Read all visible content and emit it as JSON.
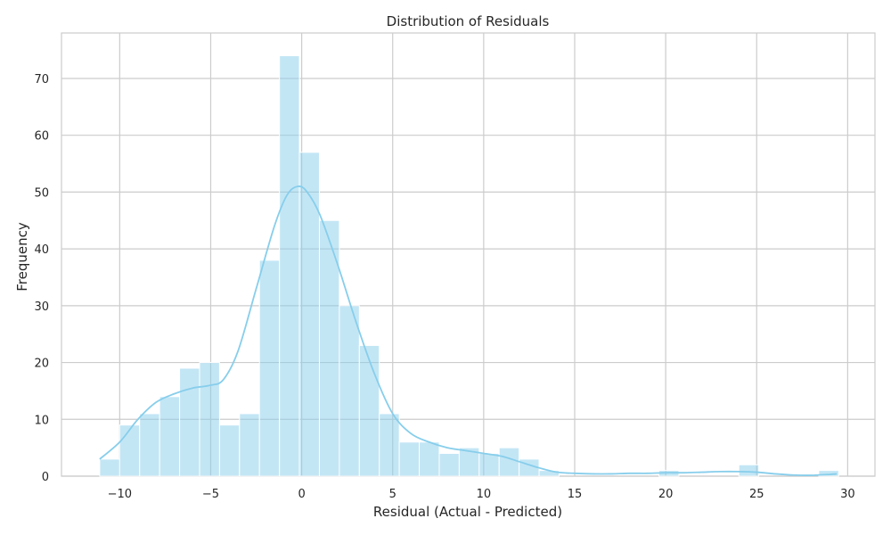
{
  "chart_data": {
    "type": "bar",
    "title": "Distribution of Residuals",
    "xlabel": "Residual (Actual - Predicted)",
    "ylabel": "Frequency",
    "xlim": [
      -13.2,
      31.5
    ],
    "ylim": [
      0,
      78
    ],
    "x_ticks": [
      -10,
      -5,
      0,
      5,
      10,
      15,
      20,
      25,
      30
    ],
    "x_tick_labels": [
      "−10",
      "−5",
      "0",
      "5",
      "10",
      "15",
      "20",
      "25",
      "30"
    ],
    "y_ticks": [
      0,
      10,
      20,
      30,
      40,
      50,
      60,
      70
    ],
    "y_tick_labels": [
      "0",
      "10",
      "20",
      "30",
      "40",
      "50",
      "60",
      "70"
    ],
    "grid": true,
    "bar_color": "#87CEEB",
    "kde_color": "#87CEEB",
    "bins": {
      "start": -11.1,
      "width": 1.0975,
      "counts": [
        3,
        9,
        11,
        14,
        19,
        20,
        9,
        11,
        38,
        74,
        57,
        45,
        30,
        23,
        11,
        6,
        6,
        4,
        5,
        4,
        5,
        3,
        1,
        0,
        0,
        0,
        0,
        0,
        1,
        0,
        0,
        0,
        2,
        0,
        0,
        0,
        1
      ]
    },
    "kde": {
      "x": [
        -11.1,
        -10,
        -9,
        -8,
        -7,
        -6,
        -5,
        -4.3,
        -3.5,
        -2.5,
        -1.5,
        -0.8,
        -0.2,
        0.3,
        1,
        2,
        3,
        4,
        5,
        6,
        7,
        8,
        9,
        10,
        11,
        12,
        13,
        14,
        15,
        16,
        17,
        18,
        19,
        20,
        21,
        22,
        23,
        24,
        25,
        26,
        27,
        28,
        29,
        29.4
      ],
      "y": [
        3,
        6,
        10,
        13,
        14.5,
        15.5,
        16,
        17,
        22,
        33,
        44,
        49.5,
        51,
        50,
        46,
        37,
        27,
        18,
        11,
        7.5,
        6,
        5,
        4.5,
        4,
        3.5,
        2.5,
        1.5,
        0.7,
        0.5,
        0.4,
        0.4,
        0.5,
        0.5,
        0.6,
        0.6,
        0.7,
        0.8,
        0.8,
        0.7,
        0.4,
        0.2,
        0.15,
        0.3,
        0.4
      ]
    }
  }
}
